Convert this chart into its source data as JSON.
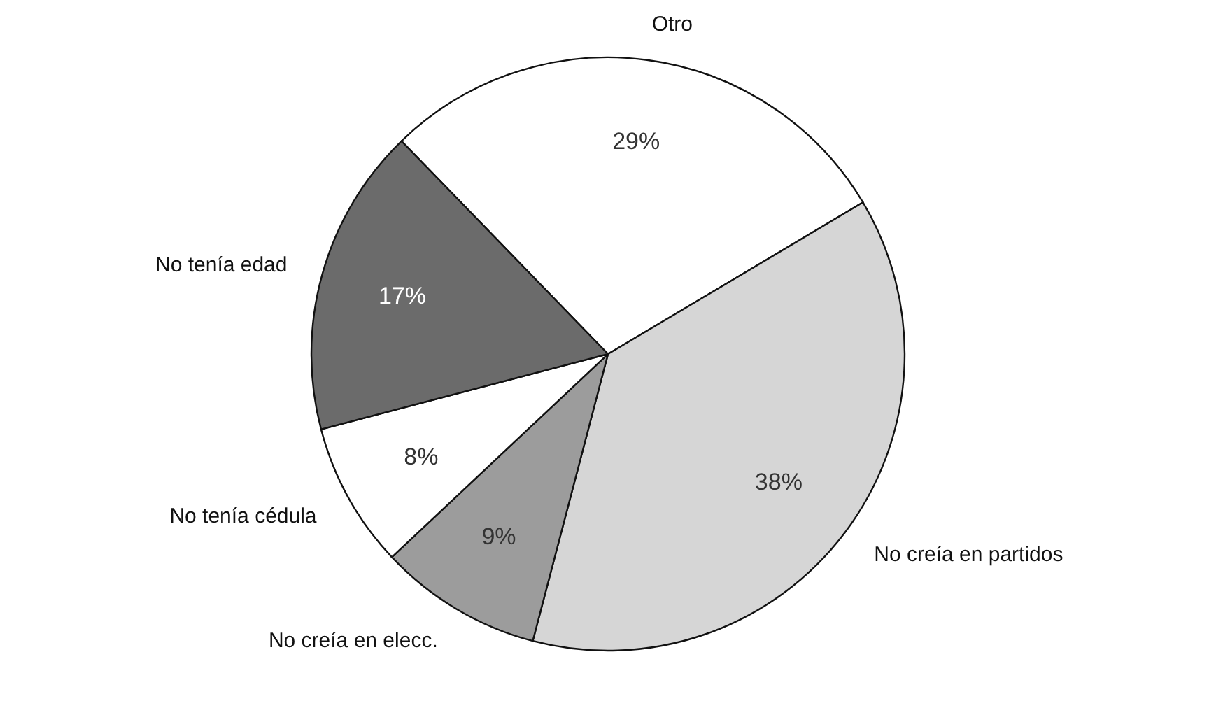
{
  "chart_data": {
    "type": "pie",
    "categories": [
      "Otro",
      "No creía en partidos",
      "No creía en elecc.",
      "No tenía cédula",
      "No tenía edad"
    ],
    "values": [
      29,
      38,
      9,
      8,
      17
    ],
    "colors": [
      "#ffffff",
      "#d6d6d6",
      "#9c9c9c",
      "#ffffff",
      "#6b6b6b"
    ],
    "value_labels": [
      "29%",
      "38%",
      "9%",
      "8%",
      "17%"
    ]
  }
}
